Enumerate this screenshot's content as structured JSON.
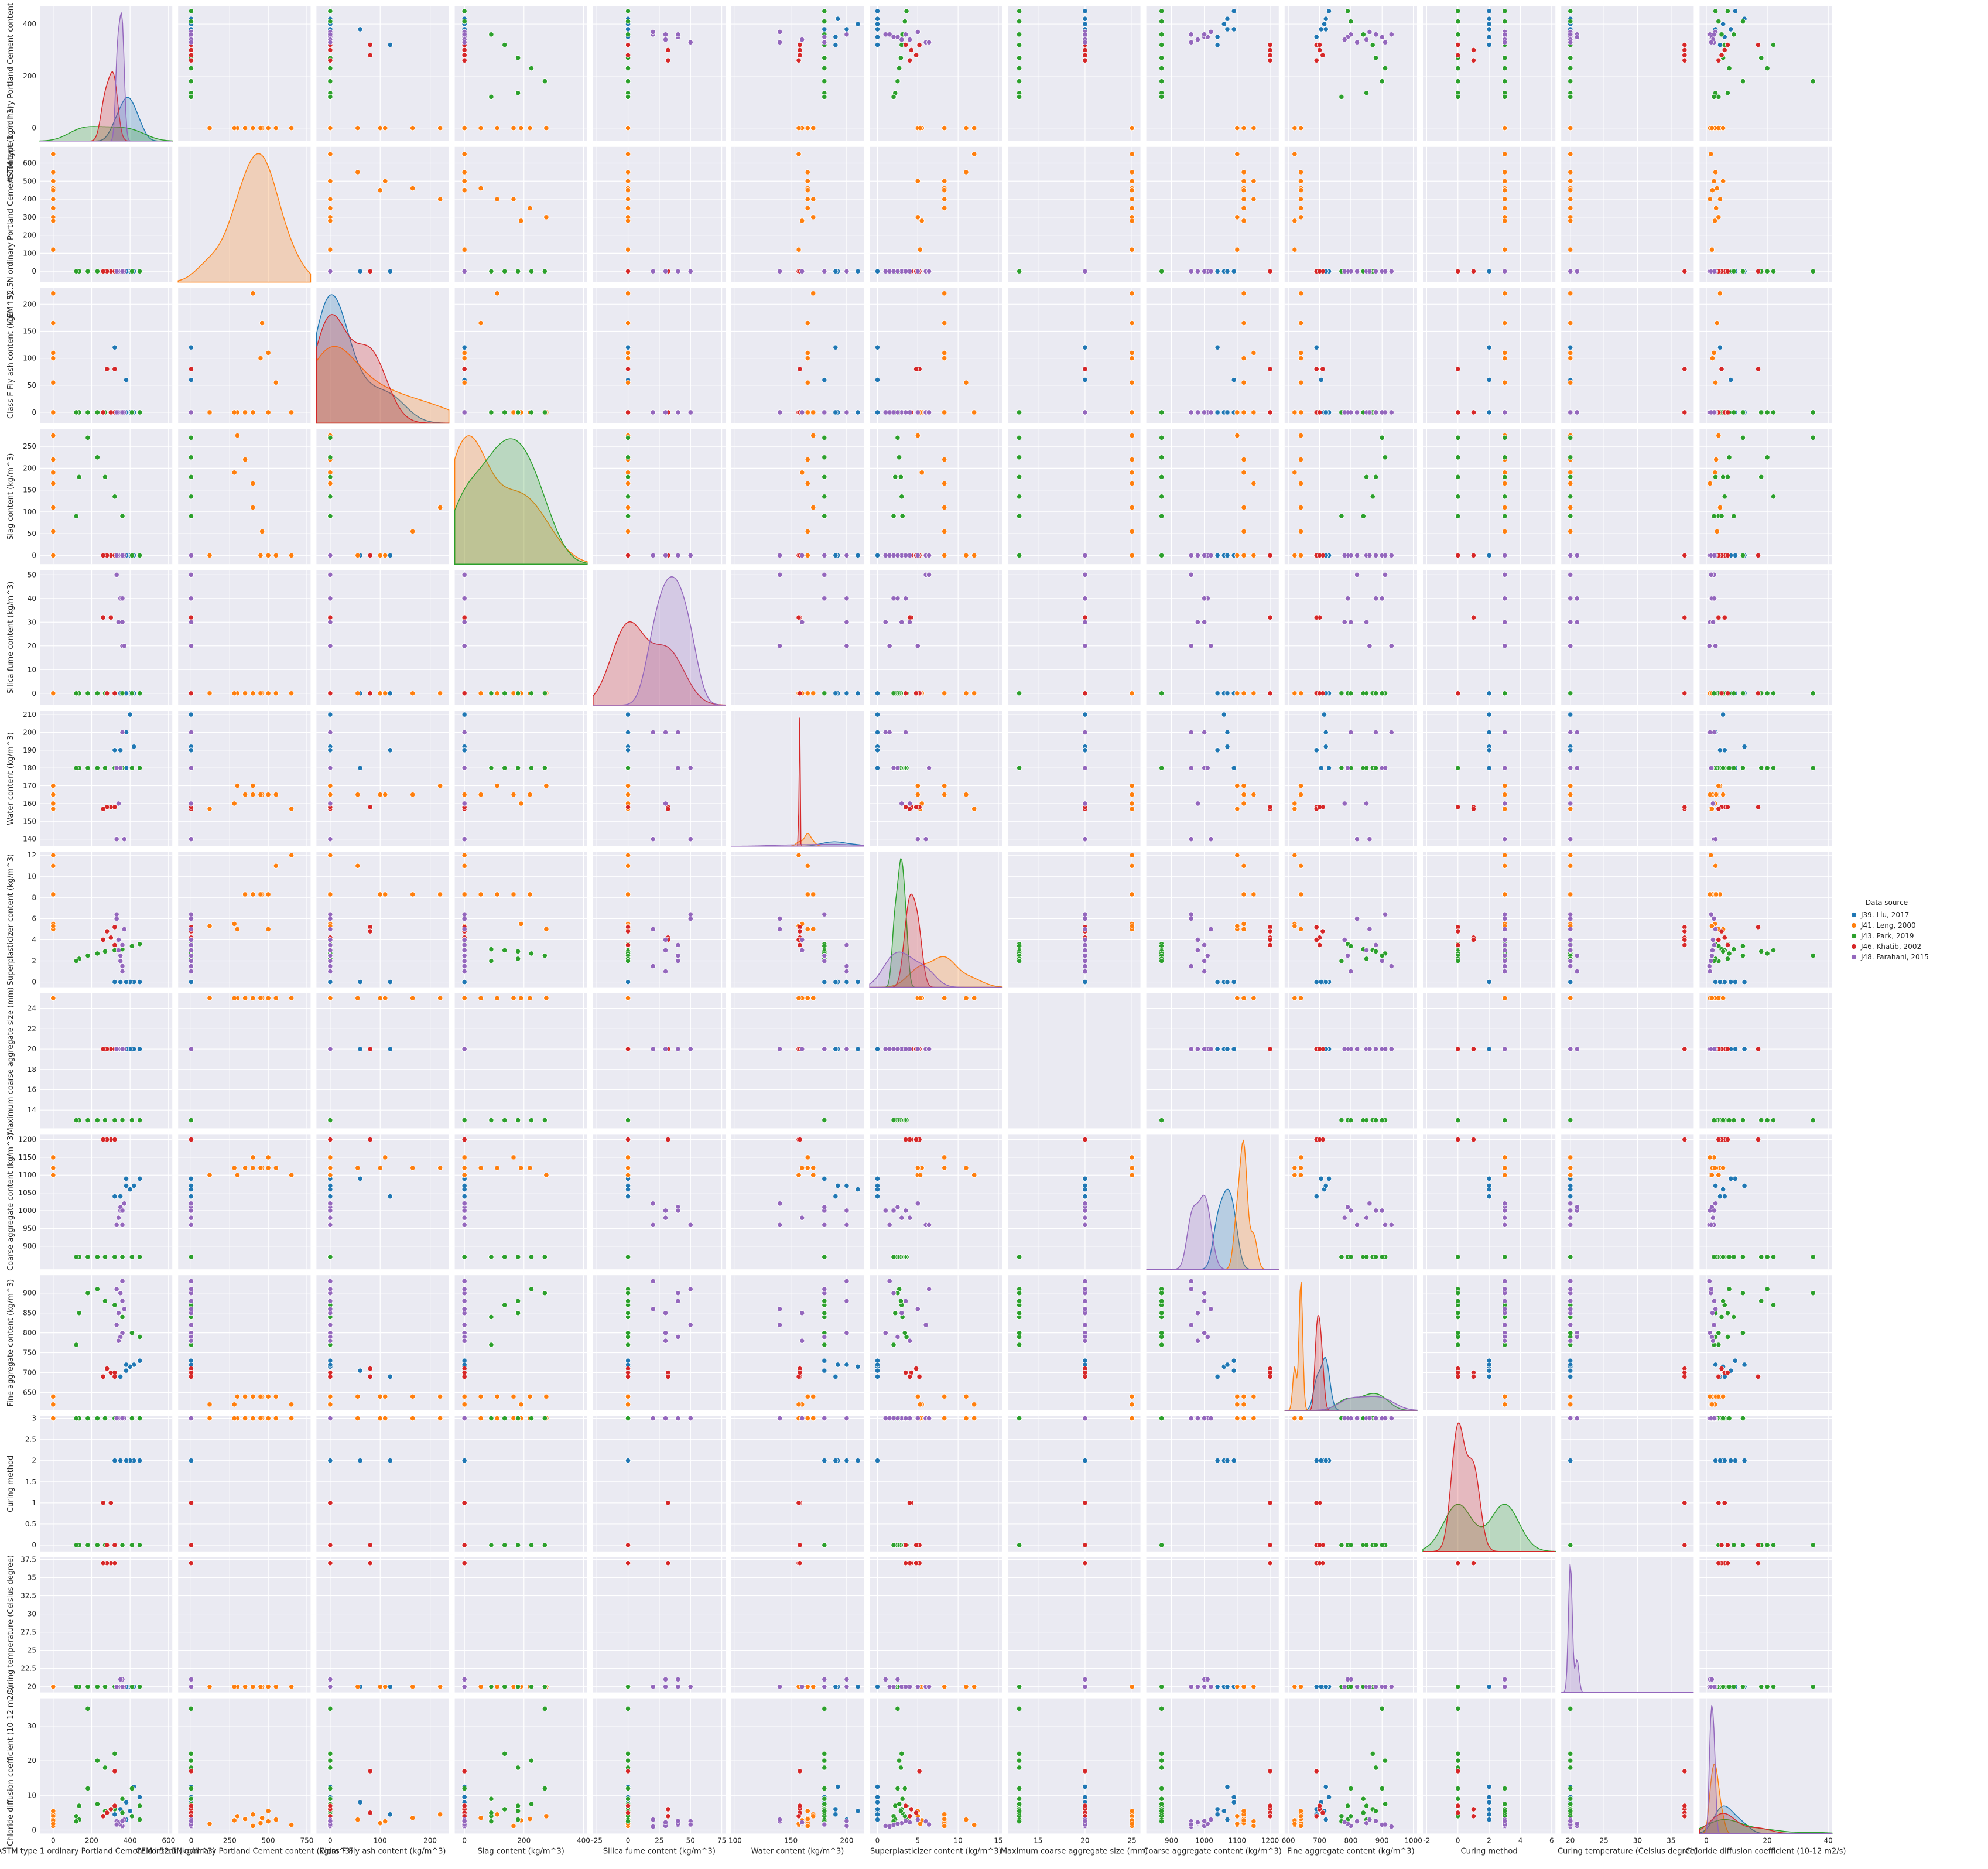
{
  "chart_data": {
    "type": "scatter",
    "title": "",
    "legend": {
      "title": "Data source",
      "placement": "right",
      "entries": [
        {
          "name": "J39. Liu, 2017",
          "color": "#1f77b4"
        },
        {
          "name": "J41. Leng, 2000",
          "color": "#ff7f0e"
        },
        {
          "name": "J43. Park, 2019",
          "color": "#2ca02c"
        },
        {
          "name": "J46. Khatib, 2002",
          "color": "#d62728"
        },
        {
          "name": "J48. Farahani, 2015",
          "color": "#9467bd"
        }
      ]
    },
    "variables": [
      {
        "name": "ASTM type 1 ordinary Portland Cement content (kg/m^3)",
        "ylabel": "ASTM type 1 ordinary Portland Cement content (kg/m^3)",
        "range": [
          -50,
          470
        ],
        "ticks": [
          0,
          200,
          400
        ],
        "xticks": [
          0,
          200,
          400,
          600
        ]
      },
      {
        "name": "CEM I 52.5N ordinary Portland Cement content (kg/m^3)",
        "ylabel": "CEM I 52.5N ordinary Portland Cement content (kg/m^3)",
        "range": [
          -60,
          690
        ],
        "ticks": [
          0,
          100,
          200,
          300,
          400,
          500,
          600
        ],
        "xticks": [
          0,
          250,
          500,
          750
        ]
      },
      {
        "name": "Class F Fly ash content (kg/m^3)",
        "ylabel": "Class F Fly ash content (kg/m^3)",
        "range": [
          -20,
          230
        ],
        "ticks": [
          0,
          50,
          100,
          150,
          200
        ],
        "xticks": [
          0,
          100,
          200
        ]
      },
      {
        "name": "Slag content (kg/m^3)",
        "ylabel": "Slag content (kg/m^3)",
        "range": [
          -20,
          290
        ],
        "ticks": [
          0,
          50,
          100,
          150,
          200,
          250
        ],
        "xticks": [
          0,
          200,
          400
        ]
      },
      {
        "name": "Silica fume content (kg/m^3)",
        "ylabel": "Silica fume content (kg/m^3)",
        "range": [
          -5,
          52
        ],
        "ticks": [
          0,
          10,
          20,
          30,
          40,
          50
        ],
        "xticks": [
          -25,
          0,
          25,
          50,
          75
        ]
      },
      {
        "name": "Water content (kg/m^3)",
        "ylabel": "Water content (kg/m^3)",
        "range": [
          136,
          212
        ],
        "ticks": [
          140,
          150,
          160,
          170,
          180,
          190,
          200,
          210
        ],
        "xticks": [
          100,
          150,
          200
        ]
      },
      {
        "name": "Superplasticizer content (kg/m^3)",
        "ylabel": "Superplasticizer content (kg/m^3)",
        "range": [
          -0.5,
          12.3
        ],
        "ticks": [
          0,
          2,
          4,
          6,
          8,
          10,
          12
        ],
        "xticks": [
          0,
          5,
          10,
          15
        ]
      },
      {
        "name": "Maximum coarse aggregate size (mm)",
        "ylabel": "Maximum coarse aggregate size (mm)",
        "range": [
          12.2,
          25.5
        ],
        "ticks": [
          14,
          16,
          18,
          20,
          22,
          24
        ],
        "xticks": [
          15,
          20,
          25
        ]
      },
      {
        "name": "Coarse aggregate content (kg/m^3)",
        "ylabel": "Coarse aggregate content (kg/m^3)",
        "range": [
          835,
          1215
        ],
        "ticks": [
          900,
          950,
          1000,
          1050,
          1100,
          1150,
          1200
        ],
        "xticks": [
          900,
          1000,
          1100,
          1200
        ]
      },
      {
        "name": "Fine aggregate content (kg/m^3)",
        "ylabel": "Fine aggregate content (kg/m^3)",
        "range": [
          605,
          945
        ],
        "ticks": [
          650,
          700,
          750,
          800,
          850,
          900
        ],
        "xticks": [
          600,
          700,
          800,
          900,
          1000
        ]
      },
      {
        "name": "Curing method",
        "ylabel": "Curing method",
        "range": [
          -0.15,
          3.05
        ],
        "ticks": [
          0.0,
          0.5,
          1.0,
          1.5,
          2.0,
          2.5,
          3.0
        ],
        "xticks": [
          -2,
          0,
          2,
          4,
          6
        ]
      },
      {
        "name": "Curing temperature (Celsius degree)",
        "ylabel": "Curing temperature (Celsius degree)",
        "range": [
          19.2,
          37.8
        ],
        "ticks": [
          20.0,
          22.5,
          25.0,
          27.5,
          30.0,
          32.5,
          35.0,
          37.5
        ],
        "xticks": [
          20,
          25,
          30,
          35
        ]
      },
      {
        "name": "Chloride diffusion coefficient (10-12 m2/s)",
        "ylabel": "Chloride diffusion coefficient (10-12 m2/s)",
        "range": [
          -1,
          38
        ],
        "ticks": [
          0,
          10,
          20,
          30
        ],
        "xticks": [
          0,
          20,
          40
        ]
      }
    ],
    "xlabel_overrides": {
      "1": "CEM I 52.5N ordinary Portland Cement content (kg/m^3)",
      "11": "Curing temperature (Celsius degree)"
    },
    "diagonal": "kde",
    "grid": true,
    "rows": [
      {
        "source": 0,
        "v": [
          450,
          0,
          0,
          0,
          0,
          180,
          0,
          20,
          1090,
          730,
          2,
          20,
          9.5
        ]
      },
      {
        "source": 0,
        "v": [
          420,
          0,
          0,
          0,
          0,
          192,
          0,
          20,
          1070,
          720,
          2,
          20,
          12.5
        ]
      },
      {
        "source": 0,
        "v": [
          400,
          0,
          0,
          0,
          0,
          210,
          0,
          20,
          1060,
          715,
          2,
          20,
          5.5
        ]
      },
      {
        "source": 0,
        "v": [
          380,
          0,
          60,
          0,
          0,
          180,
          0,
          20,
          1090,
          705,
          2,
          20,
          8
        ]
      },
      {
        "source": 0,
        "v": [
          350,
          0,
          0,
          0,
          0,
          190,
          0,
          20,
          1040,
          690,
          2,
          20,
          6
        ]
      },
      {
        "source": 0,
        "v": [
          320,
          0,
          120,
          0,
          0,
          190,
          0,
          20,
          1040,
          690,
          2,
          20,
          4.5
        ]
      },
      {
        "source": 0,
        "v": [
          380,
          0,
          0,
          0,
          0,
          200,
          0,
          20,
          1070,
          720,
          2,
          20,
          3
        ]
      },
      {
        "source": 1,
        "v": [
          0,
          650,
          0,
          0,
          0,
          157,
          12,
          25,
          1100,
          620,
          3,
          20,
          1.5
        ]
      },
      {
        "source": 1,
        "v": [
          0,
          550,
          55,
          0,
          0,
          165,
          11,
          25,
          1120,
          640,
          3,
          20,
          3
        ]
      },
      {
        "source": 1,
        "v": [
          0,
          500,
          110,
          0,
          0,
          165,
          8.3,
          25,
          1150,
          640,
          3,
          20,
          2.5
        ]
      },
      {
        "source": 1,
        "v": [
          0,
          460,
          165,
          55,
          0,
          165,
          8.3,
          25,
          1120,
          640,
          3,
          20,
          3.5
        ]
      },
      {
        "source": 1,
        "v": [
          0,
          400,
          220,
          110,
          0,
          170,
          8.3,
          25,
          1120,
          640,
          3,
          20,
          4.5
        ]
      },
      {
        "source": 1,
        "v": [
          0,
          450,
          100,
          0,
          0,
          165,
          8.3,
          25,
          1120,
          640,
          3,
          20,
          2
        ]
      },
      {
        "source": 1,
        "v": [
          0,
          400,
          0,
          165,
          0,
          165,
          8.3,
          25,
          1150,
          640,
          3,
          20,
          1.2
        ]
      },
      {
        "source": 1,
        "v": [
          0,
          350,
          0,
          220,
          0,
          165,
          8.3,
          25,
          1120,
          640,
          3,
          20,
          3.2
        ]
      },
      {
        "source": 1,
        "v": [
          0,
          300,
          0,
          275,
          0,
          170,
          5,
          25,
          1100,
          640,
          3,
          20,
          4
        ]
      },
      {
        "source": 1,
        "v": [
          0,
          280,
          0,
          190,
          0,
          160,
          5.5,
          25,
          1120,
          620,
          3,
          20,
          2.8
        ]
      },
      {
        "source": 1,
        "v": [
          0,
          500,
          0,
          0,
          0,
          165,
          5,
          25,
          1120,
          640,
          3,
          20,
          5.5
        ]
      },
      {
        "source": 1,
        "v": [
          0,
          120,
          0,
          0,
          0,
          157,
          5.3,
          25,
          1100,
          620,
          3,
          20,
          1.8
        ]
      },
      {
        "source": 2,
        "v": [
          450,
          0,
          0,
          0,
          0,
          180,
          3.6,
          13,
          870,
          790,
          0,
          20,
          7
        ]
      },
      {
        "source": 2,
        "v": [
          410,
          0,
          0,
          0,
          0,
          180,
          3.4,
          13,
          870,
          800,
          0,
          20,
          12
        ]
      },
      {
        "source": 2,
        "v": [
          360,
          0,
          0,
          90,
          0,
          180,
          3.1,
          13,
          870,
          840,
          0,
          20,
          9
        ]
      },
      {
        "source": 2,
        "v": [
          320,
          0,
          0,
          135,
          0,
          180,
          3.0,
          13,
          870,
          870,
          0,
          20,
          22
        ]
      },
      {
        "source": 2,
        "v": [
          270,
          0,
          0,
          180,
          0,
          180,
          2.9,
          13,
          870,
          880,
          0,
          20,
          18
        ]
      },
      {
        "source": 2,
        "v": [
          230,
          0,
          0,
          225,
          0,
          180,
          2.7,
          13,
          870,
          910,
          0,
          20,
          20
        ]
      },
      {
        "source": 2,
        "v": [
          180,
          0,
          0,
          270,
          0,
          180,
          2.5,
          13,
          870,
          900,
          0,
          20,
          35
        ]
      },
      {
        "source": 2,
        "v": [
          135,
          0,
          0,
          180,
          0,
          180,
          2.2,
          13,
          870,
          850,
          0,
          20,
          7
        ]
      },
      {
        "source": 2,
        "v": [
          120,
          0,
          0,
          90,
          0,
          180,
          2.0,
          13,
          870,
          770,
          0,
          20,
          4
        ]
      },
      {
        "source": 2,
        "v": [
          450,
          0,
          0,
          0,
          0,
          180,
          3.6,
          13,
          870,
          790,
          3,
          20,
          3
        ]
      },
      {
        "source": 2,
        "v": [
          410,
          0,
          0,
          0,
          0,
          180,
          3.4,
          13,
          870,
          800,
          3,
          20,
          4
        ]
      },
      {
        "source": 2,
        "v": [
          360,
          0,
          0,
          90,
          0,
          180,
          3.1,
          13,
          870,
          840,
          3,
          20,
          5
        ]
      },
      {
        "source": 2,
        "v": [
          320,
          0,
          0,
          135,
          0,
          180,
          3.0,
          13,
          870,
          870,
          3,
          20,
          6
        ]
      },
      {
        "source": 2,
        "v": [
          270,
          0,
          0,
          180,
          0,
          180,
          2.9,
          13,
          870,
          880,
          3,
          20,
          5.5
        ]
      },
      {
        "source": 2,
        "v": [
          230,
          0,
          0,
          225,
          0,
          180,
          2.7,
          13,
          870,
          910,
          3,
          20,
          7.5
        ]
      },
      {
        "source": 2,
        "v": [
          180,
          0,
          0,
          270,
          0,
          180,
          2.5,
          13,
          870,
          900,
          3,
          20,
          12
        ]
      },
      {
        "source": 2,
        "v": [
          135,
          0,
          0,
          180,
          0,
          180,
          2.2,
          13,
          870,
          850,
          3,
          20,
          3
        ]
      },
      {
        "source": 2,
        "v": [
          120,
          0,
          0,
          90,
          0,
          180,
          2.0,
          13,
          870,
          770,
          3,
          20,
          2.5
        ]
      },
      {
        "source": 3,
        "v": [
          320,
          0,
          80,
          0,
          0,
          158,
          5.2,
          20,
          1200,
          690,
          0,
          37,
          17
        ]
      },
      {
        "source": 3,
        "v": [
          300,
          0,
          0,
          0,
          32,
          158,
          4.2,
          20,
          1200,
          700,
          1,
          37,
          6
        ]
      },
      {
        "source": 3,
        "v": [
          280,
          0,
          80,
          0,
          0,
          158,
          4.8,
          20,
          1200,
          710,
          0,
          37,
          5
        ]
      },
      {
        "source": 3,
        "v": [
          260,
          0,
          0,
          0,
          32,
          157,
          4.0,
          20,
          1200,
          690,
          1,
          37,
          4
        ]
      },
      {
        "source": 3,
        "v": [
          320,
          0,
          0,
          0,
          0,
          158,
          3.5,
          20,
          1200,
          700,
          0,
          37,
          7
        ]
      },
      {
        "source": 4,
        "v": [
          360,
          0,
          0,
          0,
          20,
          200,
          1.5,
          20,
          960,
          930,
          3,
          20,
          1.0
        ]
      },
      {
        "source": 4,
        "v": [
          350,
          0,
          0,
          0,
          40,
          180,
          2.0,
          20,
          1000,
          900,
          3,
          20,
          1.5
        ]
      },
      {
        "source": 4,
        "v": [
          340,
          0,
          0,
          0,
          30,
          160,
          3.0,
          20,
          980,
          850,
          3,
          20,
          2.0
        ]
      },
      {
        "source": 4,
        "v": [
          330,
          0,
          0,
          0,
          50,
          140,
          6.0,
          20,
          960,
          820,
          3,
          20,
          2.5
        ]
      },
      {
        "source": 4,
        "v": [
          360,
          0,
          0,
          0,
          30,
          200,
          1.0,
          20,
          1000,
          800,
          3,
          21,
          1.2
        ]
      },
      {
        "source": 4,
        "v": [
          350,
          0,
          0,
          0,
          40,
          180,
          2.5,
          20,
          1010,
          790,
          3,
          21,
          1.8
        ]
      },
      {
        "source": 4,
        "v": [
          340,
          0,
          0,
          0,
          30,
          160,
          4.0,
          20,
          980,
          780,
          3,
          20,
          2.2
        ]
      },
      {
        "source": 4,
        "v": [
          370,
          0,
          0,
          0,
          20,
          140,
          5.0,
          20,
          1020,
          860,
          3,
          20,
          3.0
        ]
      },
      {
        "source": 4,
        "v": [
          330,
          0,
          0,
          0,
          50,
          180,
          6.4,
          20,
          960,
          910,
          3,
          20,
          1.6
        ]
      },
      {
        "source": 4,
        "v": [
          360,
          0,
          0,
          0,
          40,
          200,
          3.5,
          20,
          1000,
          880,
          3,
          20,
          2.6
        ]
      }
    ]
  }
}
